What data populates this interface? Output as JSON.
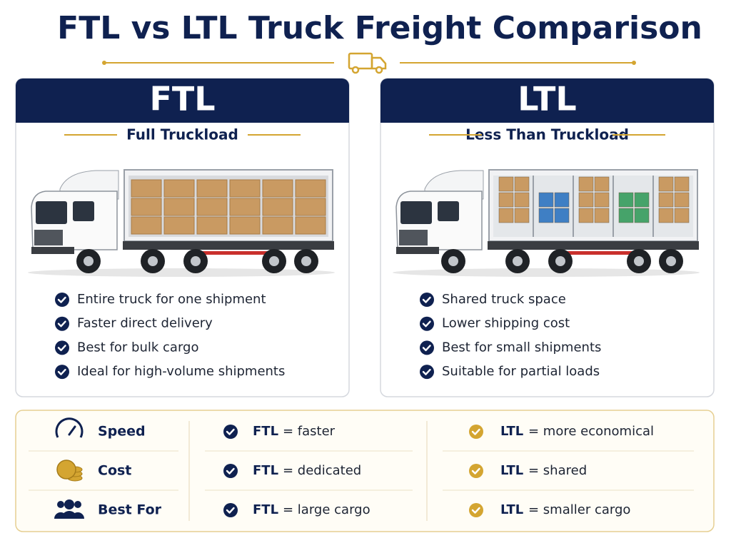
{
  "header": {
    "title": "FTL vs LTL Truck Freight Comparison"
  },
  "panels": [
    {
      "heading": "FTL",
      "subtitle": "Full Truckload",
      "bullets": [
        "Entire truck for one shipment",
        "Faster direct delivery",
        "Best for bulk cargo",
        "Ideal for high-volume shipments"
      ]
    },
    {
      "heading": "LTL",
      "subtitle": "Less Than Truckload",
      "bullets": [
        "Shared truck space",
        "Lower shipping cost",
        "Best for small shipments",
        "Suitable for partial loads"
      ]
    }
  ],
  "comparison": {
    "rows": [
      {
        "label": "Speed",
        "ftl_term": "FTL",
        "ftl_text": "= faster",
        "ltl_term": "LTL",
        "ltl_text": "= more economical"
      },
      {
        "label": "Cost",
        "ftl_term": "FTL",
        "ftl_text": "= dedicated",
        "ltl_term": "LTL",
        "ltl_text": "= shared"
      },
      {
        "label": "Best For",
        "ftl_term": "FTL",
        "ftl_text": "= large cargo",
        "ltl_term": "LTL",
        "ltl_text": "= smaller cargo"
      }
    ]
  }
}
